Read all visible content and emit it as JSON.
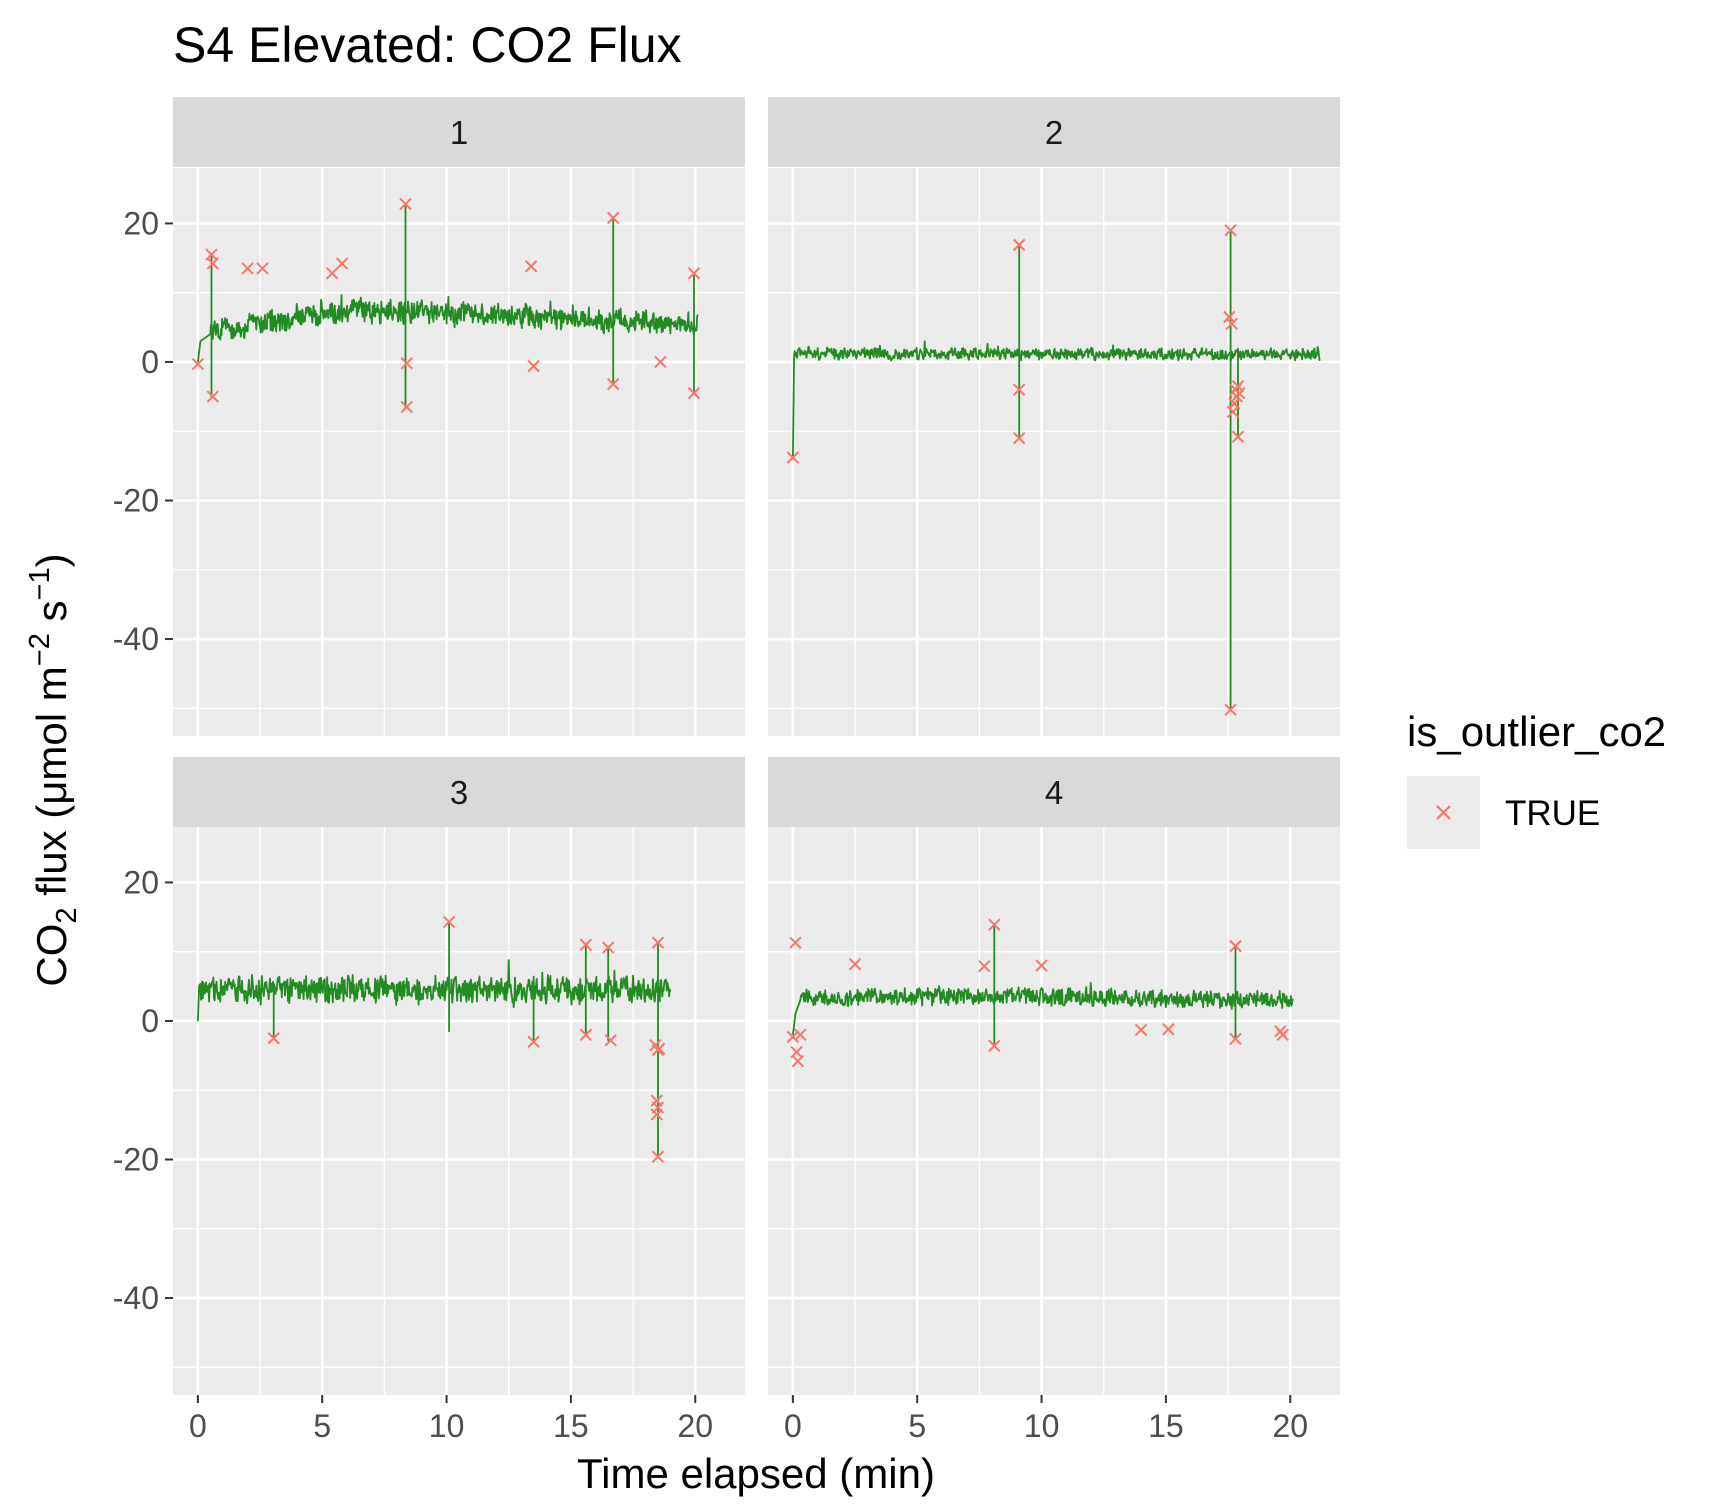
{
  "chart_data": {
    "type": "line",
    "title": "S4 Elevated: CO2 Flux",
    "xlabel": "Time elapsed (min)",
    "ylabel": {
      "prefix": "CO",
      "sub": "2",
      "middle": " flux (μmol m",
      "sup1": "−2",
      "middle2": " s",
      "sup2": "−1",
      "suffix": ")"
    },
    "xlim": [
      -1,
      22
    ],
    "ylim": [
      -54,
      28
    ],
    "x_ticks": [
      0,
      5,
      10,
      15,
      20
    ],
    "x_tick_labels": [
      "0",
      "5",
      "10",
      "15",
      "20"
    ],
    "y_ticks": [
      20,
      0,
      -20,
      -40
    ],
    "y_tick_labels": [
      "20",
      "0",
      "-20",
      "-40"
    ],
    "grid": true,
    "legend": {
      "title": "is_outlier_co2",
      "position": "right",
      "entries": [
        {
          "label": "TRUE",
          "color": "#F8766D",
          "shape": "x"
        }
      ]
    },
    "colors": {
      "line": "#228B22",
      "outlier": "#F8766D",
      "panel_bg": "#EBEBEB",
      "strip_bg": "#D9D9D9",
      "grid": "#FFFFFF"
    },
    "panels": [
      {
        "label": "1",
        "baseline": {
          "x_end": 20.1,
          "y_pre": [
            [
              0,
              0
            ],
            [
              0.1,
              3
            ],
            [
              0.5,
              4
            ]
          ],
          "mean_start": 4.5,
          "mean_peak": 7.5,
          "mean_end": 5.5,
          "noise": 1.6
        },
        "spikes": [
          {
            "x": 0.55,
            "ys": [
              15.5,
              14.2,
              -5.0
            ]
          },
          {
            "x": 8.35,
            "ys": [
              22.8,
              -0.2,
              -6.5
            ]
          },
          {
            "x": 16.7,
            "ys": [
              20.8,
              -3.2
            ]
          },
          {
            "x": 19.95,
            "ys": [
              12.8,
              -4.5
            ]
          }
        ],
        "outliers": [
          {
            "x": 0.0,
            "y": -0.3
          },
          {
            "x": 0.55,
            "y": 15.5
          },
          {
            "x": 0.6,
            "y": 14.2
          },
          {
            "x": 0.6,
            "y": -5.0
          },
          {
            "x": 2.0,
            "y": 13.5
          },
          {
            "x": 2.6,
            "y": 13.5
          },
          {
            "x": 5.4,
            "y": 12.8
          },
          {
            "x": 5.8,
            "y": 14.2
          },
          {
            "x": 8.35,
            "y": 22.8
          },
          {
            "x": 8.4,
            "y": -0.2
          },
          {
            "x": 8.4,
            "y": -6.5
          },
          {
            "x": 13.4,
            "y": 13.8
          },
          {
            "x": 13.5,
            "y": -0.6
          },
          {
            "x": 16.7,
            "y": 20.8
          },
          {
            "x": 16.7,
            "y": -3.2
          },
          {
            "x": 18.6,
            "y": 0.0
          },
          {
            "x": 19.95,
            "y": 12.8
          },
          {
            "x": 19.95,
            "y": -4.5
          }
        ]
      },
      {
        "label": "2",
        "baseline": {
          "x_end": 21.2,
          "y_pre": [
            [
              0,
              -13.8
            ],
            [
              0.05,
              1
            ]
          ],
          "mean_start": 1.2,
          "mean_peak": 1.2,
          "mean_end": 1.0,
          "noise": 0.8
        },
        "spikes": [
          {
            "x": 9.1,
            "ys": [
              16.9,
              -4.0,
              -11.0
            ]
          },
          {
            "x": 17.6,
            "ys": [
              19.0,
              6.5,
              -50.2,
              -7.0,
              5.5,
              -5.5
            ]
          },
          {
            "x": 17.9,
            "ys": [
              -4.0,
              -10.8,
              -5.0
            ]
          }
        ],
        "outliers": [
          {
            "x": 0.0,
            "y": -13.8
          },
          {
            "x": 9.1,
            "y": 16.9
          },
          {
            "x": 9.1,
            "y": -4.0
          },
          {
            "x": 9.1,
            "y": -11.0
          },
          {
            "x": 17.55,
            "y": 6.5
          },
          {
            "x": 17.6,
            "y": 19.0
          },
          {
            "x": 17.65,
            "y": 5.5
          },
          {
            "x": 17.6,
            "y": -50.2
          },
          {
            "x": 17.7,
            "y": -7.2
          },
          {
            "x": 17.75,
            "y": -6.0
          },
          {
            "x": 17.8,
            "y": -4.0
          },
          {
            "x": 17.85,
            "y": -5.0
          },
          {
            "x": 17.9,
            "y": -3.5
          },
          {
            "x": 17.95,
            "y": -4.5
          },
          {
            "x": 17.9,
            "y": -10.8
          }
        ]
      },
      {
        "label": "3",
        "baseline": {
          "x_end": 19.0,
          "y_pre": [
            [
              0,
              0
            ],
            [
              0.05,
              5
            ]
          ],
          "mean_start": 4.5,
          "mean_peak": 4.5,
          "mean_end": 4.5,
          "noise": 1.9
        },
        "spikes": [
          {
            "x": 3.05,
            "ys": [
              -2.5
            ]
          },
          {
            "x": 10.1,
            "ys": [
              14.3,
              -1.5
            ]
          },
          {
            "x": 13.5,
            "ys": [
              -3.0
            ]
          },
          {
            "x": 15.6,
            "ys": [
              11.0,
              -2.0
            ]
          },
          {
            "x": 16.5,
            "ys": [
              10.6,
              -2.8
            ]
          },
          {
            "x": 18.5,
            "ys": [
              11.3,
              -19.6,
              -3.5,
              -4.5
            ]
          }
        ],
        "outliers": [
          {
            "x": 3.05,
            "y": -2.5
          },
          {
            "x": 10.1,
            "y": 14.3
          },
          {
            "x": 13.5,
            "y": -3.0
          },
          {
            "x": 15.6,
            "y": 11.0
          },
          {
            "x": 15.6,
            "y": -2.0
          },
          {
            "x": 16.5,
            "y": 10.6
          },
          {
            "x": 16.6,
            "y": -2.8
          },
          {
            "x": 18.5,
            "y": 11.3
          },
          {
            "x": 18.4,
            "y": -3.5
          },
          {
            "x": 18.5,
            "y": -4.2
          },
          {
            "x": 18.55,
            "y": -4.0
          },
          {
            "x": 18.45,
            "y": -11.5
          },
          {
            "x": 18.5,
            "y": -12.5
          },
          {
            "x": 18.45,
            "y": -13.5
          },
          {
            "x": 18.5,
            "y": -19.6
          }
        ]
      },
      {
        "label": "4",
        "baseline": {
          "x_end": 20.1,
          "y_pre": [
            [
              0,
              -2
            ],
            [
              0.1,
              1
            ],
            [
              0.3,
              3
            ]
          ],
          "mean_start": 3.3,
          "mean_peak": 3.6,
          "mean_end": 3.0,
          "noise": 1.2
        },
        "spikes": [
          {
            "x": 0.1,
            "ys": [
              11.3,
              -5.0
            ]
          },
          {
            "x": 8.1,
            "ys": [
              13.9,
              -3.6
            ]
          },
          {
            "x": 17.8,
            "ys": [
              10.8,
              -2.6
            ]
          }
        ],
        "outliers": [
          {
            "x": 0.0,
            "y": -2.3
          },
          {
            "x": 0.1,
            "y": 11.3
          },
          {
            "x": 0.15,
            "y": -4.5
          },
          {
            "x": 0.2,
            "y": -5.8
          },
          {
            "x": 0.3,
            "y": -2.0
          },
          {
            "x": 2.5,
            "y": 8.2
          },
          {
            "x": 7.7,
            "y": 7.9
          },
          {
            "x": 8.1,
            "y": 13.9
          },
          {
            "x": 8.1,
            "y": -3.6
          },
          {
            "x": 10.0,
            "y": 8.0
          },
          {
            "x": 14.0,
            "y": -1.3
          },
          {
            "x": 15.1,
            "y": -1.2
          },
          {
            "x": 17.8,
            "y": 10.8
          },
          {
            "x": 17.8,
            "y": -2.6
          },
          {
            "x": 19.6,
            "y": -1.5
          },
          {
            "x": 19.7,
            "y": -2.0
          }
        ]
      }
    ]
  }
}
